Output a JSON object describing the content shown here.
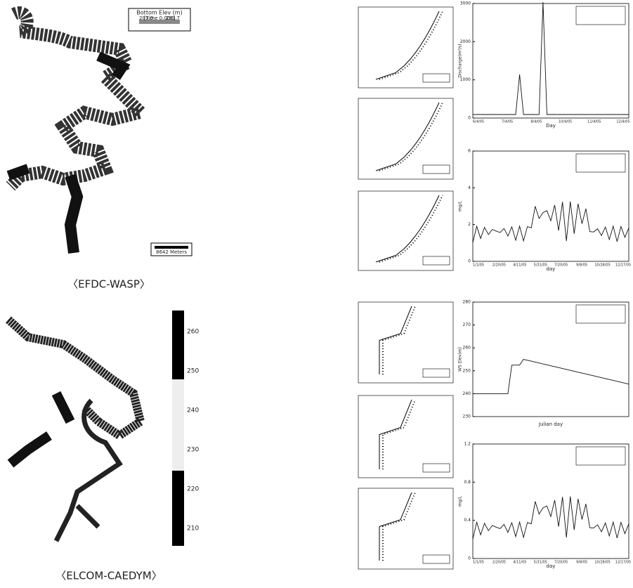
{
  "top_map": {
    "legend_title": "Bottom Elev (m)",
    "legend_min": "203.0",
    "legend_time": "[Time 0.000]",
    "legend_max": "299.7",
    "scale": "8642 Meters",
    "caption": "〈EFDC-WASP〉"
  },
  "bottom_map": {
    "colorbar_ticks": [
      "260",
      "250",
      "240",
      "230",
      "220",
      "210"
    ],
    "caption": "〈ELCOM-CAEDYM〉"
  },
  "discharge": {
    "y_label": "Discharge(m³/s)",
    "x_label": "Day",
    "y_ticks": [
      "3000",
      "2000",
      "1000",
      "0"
    ],
    "x_ticks": [
      "6/4/05",
      "7/4/05",
      "8/4/05",
      "10/4/05",
      "11/4/05",
      "12/4/05"
    ]
  },
  "conc_a": {
    "y_label": "mg/L",
    "x_label": "day",
    "y_ticks": [
      "6",
      "4",
      "2",
      "0"
    ],
    "x_ticks": [
      "1/1/05",
      "2/20/05",
      "4/11/05",
      "5/31/05",
      "7/20/05",
      "9/8/05",
      "10/28/05",
      "12/17/05"
    ]
  },
  "elevation": {
    "y_label": "WS Elev(m)",
    "x_label": "Julian day",
    "y_ticks": [
      "280",
      "270",
      "260",
      "250",
      "240",
      "230"
    ],
    "x_ticks": []
  },
  "conc_b": {
    "y_label": "mg/L",
    "x_label": "day",
    "y_ticks": [
      "1.2",
      "0.8",
      "0.4",
      "0"
    ],
    "x_ticks": [
      "1/1/05",
      "2/20/05",
      "4/11/05",
      "5/31/05",
      "7/20/05",
      "9/8/05",
      "10/28/05",
      "12/17/05"
    ]
  }
}
